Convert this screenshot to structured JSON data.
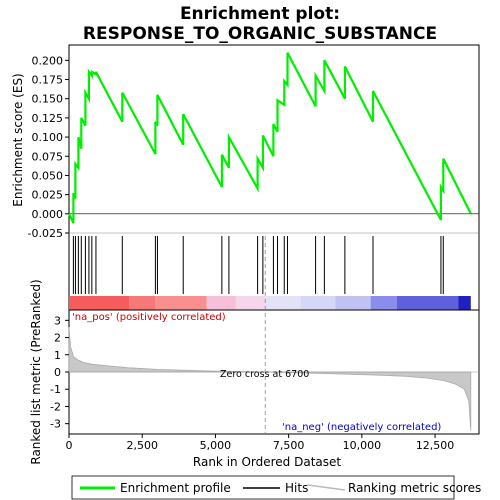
{
  "chart_data": {
    "type": "line",
    "title_line1": "Enrichment plot:",
    "title_line2": "RESPONSE_TO_ORGANIC_SUBSTANCE",
    "top_panel": {
      "ylabel": "Enrichment score (ES)",
      "ylim": [
        -0.025,
        0.22
      ],
      "yticks": [
        "-0.025",
        "0.000",
        "0.025",
        "0.050",
        "0.075",
        "0.100",
        "0.125",
        "0.150",
        "0.175",
        "0.200"
      ],
      "ytick_values": [
        -0.025,
        0.0,
        0.025,
        0.05,
        0.075,
        0.1,
        0.125,
        0.15,
        0.175,
        0.2
      ],
      "line_color": "#00ee00",
      "series": {
        "name": "Enrichment profile",
        "x": [
          0,
          150,
          150,
          220,
          220,
          320,
          320,
          420,
          420,
          560,
          560,
          680,
          680,
          780,
          780,
          920,
          920,
          1820,
          1820,
          2950,
          2950,
          3020,
          3020,
          3900,
          3900,
          5220,
          5220,
          5460,
          5460,
          6440,
          6440,
          6620,
          6620,
          6980,
          6980,
          7120,
          7120,
          7350,
          7350,
          7460,
          7460,
          8420,
          8420,
          8720,
          8720,
          9420,
          9420,
          10380,
          10380,
          12700,
          12700,
          12780,
          12780,
          13720
        ],
        "y": [
          0.0,
          -0.012,
          0.027,
          0.02,
          0.065,
          0.06,
          0.1,
          0.085,
          0.125,
          0.115,
          0.158,
          0.15,
          0.185,
          0.18,
          0.185,
          0.182,
          0.185,
          0.12,
          0.158,
          0.078,
          0.12,
          0.115,
          0.155,
          0.09,
          0.13,
          0.035,
          0.077,
          0.06,
          0.1,
          0.033,
          0.072,
          0.06,
          0.102,
          0.075,
          0.117,
          0.107,
          0.148,
          0.142,
          0.173,
          0.168,
          0.21,
          0.14,
          0.18,
          0.16,
          0.2,
          0.15,
          0.192,
          0.12,
          0.16,
          -0.008,
          0.035,
          0.03,
          0.072,
          0.0
        ]
      }
    },
    "hits": [
      150,
      220,
      320,
      420,
      560,
      680,
      780,
      920,
      1820,
      2950,
      3020,
      3900,
      5220,
      5460,
      6440,
      6620,
      6980,
      7120,
      7350,
      7460,
      8420,
      8720,
      9420,
      10380,
      12700,
      12780
    ],
    "heat_band": {
      "segments": [
        {
          "from": 0,
          "to": 2050,
          "color": "#f55c5c"
        },
        {
          "from": 2050,
          "to": 2950,
          "color": "#f77878"
        },
        {
          "from": 2950,
          "to": 4700,
          "color": "#f99090"
        },
        {
          "from": 4700,
          "to": 5700,
          "color": "#f8bfd8"
        },
        {
          "from": 5700,
          "to": 6700,
          "color": "#f6d6ea"
        },
        {
          "from": 6700,
          "to": 7900,
          "color": "#e4e2f6"
        },
        {
          "from": 7900,
          "to": 9100,
          "color": "#d6d6f6"
        },
        {
          "from": 9100,
          "to": 10300,
          "color": "#c2c2f2"
        },
        {
          "from": 10300,
          "to": 11200,
          "color": "#8c8cec"
        },
        {
          "from": 11200,
          "to": 13300,
          "color": "#6060dc"
        },
        {
          "from": 13300,
          "to": 13720,
          "color": "#2020c0"
        }
      ]
    },
    "bottom_panel": {
      "ylabel": "Ranked list metric (PreRanked)",
      "xlabel": "Rank in Ordered Dataset",
      "ylim": [
        -3.6,
        3.6
      ],
      "yticks": [
        "-3",
        "-2",
        "-1",
        "0",
        "1",
        "2",
        "3"
      ],
      "ytick_values": [
        -3,
        -2,
        -1,
        0,
        1,
        2,
        3
      ],
      "xlim": [
        0,
        14000
      ],
      "xticks": [
        "0",
        "2,500",
        "5,000",
        "7,500",
        "10,000",
        "12,500"
      ],
      "xtick_values": [
        0,
        2500,
        5000,
        7500,
        10000,
        12500
      ],
      "metric_profile": {
        "x": [
          0,
          50,
          150,
          300,
          500,
          800,
          1200,
          2000,
          3000,
          4000,
          5000,
          6000,
          6700,
          7500,
          8500,
          9500,
          10500,
          11500,
          12200,
          12800,
          13200,
          13500,
          13650,
          13720
        ],
        "y": [
          2.6,
          1.5,
          0.9,
          0.7,
          0.55,
          0.45,
          0.38,
          0.25,
          0.15,
          0.1,
          0.05,
          0.02,
          0.0,
          -0.03,
          -0.08,
          -0.13,
          -0.18,
          -0.25,
          -0.35,
          -0.5,
          -0.7,
          -1.0,
          -1.7,
          -3.4
        ]
      },
      "label_pos": "'na_pos' (positively correlated)",
      "label_neg": "'na_neg' (negatively correlated)",
      "zero_cross_label": "Zero cross at 6700",
      "zero_cross": 6700
    },
    "legend": [
      {
        "label": "Enrichment profile",
        "color": "#00ee00"
      },
      {
        "label": "Hits",
        "color": "#000000"
      },
      {
        "label": "Ranking metric scores",
        "color": "#bbbbbb"
      }
    ]
  }
}
